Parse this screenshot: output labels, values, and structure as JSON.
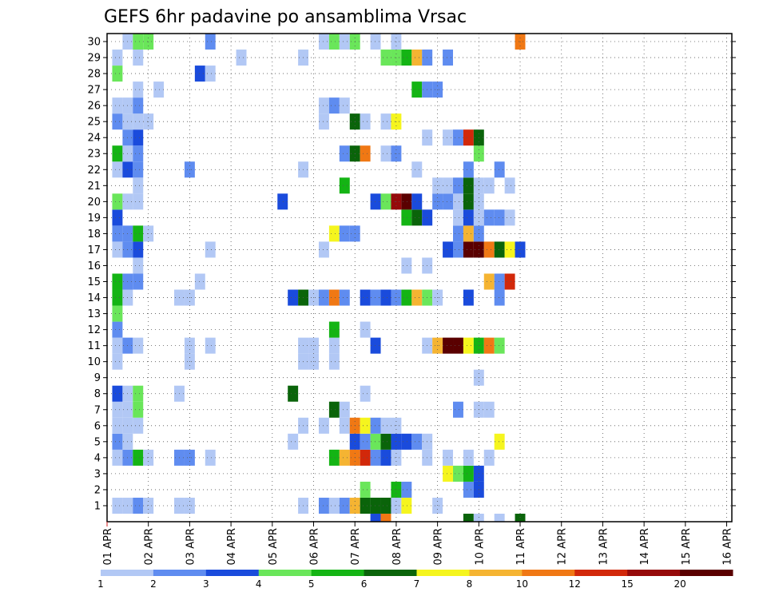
{
  "chart_data": {
    "type": "heatmap",
    "title": "GEFS 6hr padavine po ansamblima Vrsac",
    "xlabel": "",
    "ylabel": "",
    "x_tick_labels": [
      "01 APR",
      "02 APR",
      "03 APR",
      "04 APR",
      "05 APR",
      "06 APR",
      "07 APR",
      "08 APR",
      "09 APR",
      "10 APR",
      "11 APR",
      "12 APR",
      "13 APR",
      "14 APR",
      "15 APR",
      "16 APR"
    ],
    "y_tick_labels": [
      "1",
      "2",
      "3",
      "4",
      "5",
      "6",
      "7",
      "8",
      "9",
      "10",
      "11",
      "12",
      "13",
      "14",
      "15",
      "16",
      "17",
      "18",
      "19",
      "20",
      "21",
      "22",
      "23",
      "24",
      "25",
      "26",
      "27",
      "28",
      "29",
      "30"
    ],
    "grid": true,
    "legend_position": "bottom",
    "legend": {
      "labels": [
        "1",
        "2",
        "3",
        "4",
        "5",
        "6",
        "7",
        "8",
        "10",
        "12",
        "15",
        "20"
      ],
      "colors": [
        "#b2c8f5",
        "#5f8cf0",
        "#1a4bdc",
        "#6ae65a",
        "#14b414",
        "#0a640a",
        "#f5f51e",
        "#f5b432",
        "#f07814",
        "#d2280a",
        "#960a0a",
        "#5a0000"
      ]
    },
    "cells": [
      [
        1,
        1,
        0
      ],
      [
        2,
        1,
        0
      ],
      [
        3,
        1,
        1
      ],
      [
        4,
        1,
        0
      ],
      [
        7,
        1,
        0
      ],
      [
        8,
        1,
        0
      ],
      [
        19,
        1,
        0
      ],
      [
        21,
        1,
        1
      ],
      [
        22,
        1,
        0
      ],
      [
        23,
        1,
        1
      ],
      [
        24,
        1,
        7
      ],
      [
        25,
        1,
        5
      ],
      [
        26,
        1,
        5
      ],
      [
        27,
        1,
        5
      ],
      [
        28,
        1,
        0
      ],
      [
        29,
        1,
        6
      ],
      [
        32,
        1,
        0
      ],
      [
        25,
        2,
        3
      ],
      [
        28,
        2,
        4
      ],
      [
        29,
        2,
        1
      ],
      [
        35,
        2,
        1
      ],
      [
        36,
        2,
        2
      ],
      [
        33,
        3,
        6
      ],
      [
        34,
        3,
        3
      ],
      [
        35,
        3,
        4
      ],
      [
        36,
        3,
        2
      ],
      [
        1,
        4,
        0
      ],
      [
        2,
        4,
        1
      ],
      [
        3,
        4,
        4
      ],
      [
        4,
        4,
        0
      ],
      [
        7,
        4,
        1
      ],
      [
        8,
        4,
        1
      ],
      [
        10,
        4,
        0
      ],
      [
        22,
        4,
        4
      ],
      [
        23,
        4,
        7
      ],
      [
        24,
        4,
        8
      ],
      [
        25,
        4,
        9
      ],
      [
        26,
        4,
        1
      ],
      [
        27,
        4,
        2
      ],
      [
        28,
        4,
        0
      ],
      [
        31,
        4,
        0
      ],
      [
        33,
        4,
        0
      ],
      [
        35,
        4,
        0
      ],
      [
        37,
        4,
        0
      ],
      [
        1,
        5,
        1
      ],
      [
        2,
        5,
        0
      ],
      [
        18,
        5,
        0
      ],
      [
        24,
        5,
        2
      ],
      [
        25,
        5,
        1
      ],
      [
        26,
        5,
        3
      ],
      [
        27,
        5,
        5
      ],
      [
        28,
        5,
        2
      ],
      [
        29,
        5,
        2
      ],
      [
        30,
        5,
        1
      ],
      [
        31,
        5,
        0
      ],
      [
        38,
        5,
        6
      ],
      [
        1,
        6,
        0
      ],
      [
        2,
        6,
        0
      ],
      [
        3,
        6,
        0
      ],
      [
        19,
        6,
        0
      ],
      [
        21,
        6,
        0
      ],
      [
        23,
        6,
        0
      ],
      [
        24,
        6,
        8
      ],
      [
        25,
        6,
        6
      ],
      [
        26,
        6,
        1
      ],
      [
        27,
        6,
        0
      ],
      [
        28,
        6,
        0
      ],
      [
        1,
        7,
        0
      ],
      [
        2,
        7,
        0
      ],
      [
        3,
        7,
        3
      ],
      [
        22,
        7,
        5
      ],
      [
        23,
        7,
        0
      ],
      [
        34,
        7,
        1
      ],
      [
        36,
        7,
        0
      ],
      [
        37,
        7,
        0
      ],
      [
        1,
        8,
        2
      ],
      [
        2,
        8,
        0
      ],
      [
        3,
        8,
        3
      ],
      [
        7,
        8,
        0
      ],
      [
        18,
        8,
        5
      ],
      [
        25,
        8,
        0
      ],
      [
        36,
        9,
        0
      ],
      [
        1,
        10,
        0
      ],
      [
        8,
        10,
        0
      ],
      [
        19,
        10,
        0
      ],
      [
        20,
        10,
        0
      ],
      [
        22,
        10,
        0
      ],
      [
        1,
        11,
        0
      ],
      [
        2,
        11,
        1
      ],
      [
        3,
        11,
        0
      ],
      [
        8,
        11,
        0
      ],
      [
        10,
        11,
        0
      ],
      [
        19,
        11,
        0
      ],
      [
        20,
        11,
        0
      ],
      [
        22,
        11,
        0
      ],
      [
        26,
        11,
        2
      ],
      [
        31,
        11,
        0
      ],
      [
        32,
        11,
        7
      ],
      [
        33,
        11,
        11
      ],
      [
        34,
        11,
        11
      ],
      [
        35,
        11,
        6
      ],
      [
        36,
        11,
        4
      ],
      [
        37,
        11,
        8
      ],
      [
        38,
        11,
        3
      ],
      [
        1,
        12,
        1
      ],
      [
        22,
        12,
        4
      ],
      [
        25,
        12,
        0
      ],
      [
        1,
        13,
        3
      ],
      [
        1,
        14,
        4
      ],
      [
        2,
        14,
        0
      ],
      [
        7,
        14,
        0
      ],
      [
        8,
        14,
        0
      ],
      [
        18,
        14,
        2
      ],
      [
        19,
        14,
        5
      ],
      [
        20,
        14,
        0
      ],
      [
        21,
        14,
        1
      ],
      [
        22,
        14,
        8
      ],
      [
        23,
        14,
        1
      ],
      [
        25,
        14,
        2
      ],
      [
        26,
        14,
        1
      ],
      [
        27,
        14,
        2
      ],
      [
        28,
        14,
        1
      ],
      [
        29,
        14,
        4
      ],
      [
        30,
        14,
        7
      ],
      [
        31,
        14,
        3
      ],
      [
        32,
        14,
        0
      ],
      [
        35,
        14,
        2
      ],
      [
        38,
        14,
        1
      ],
      [
        1,
        15,
        4
      ],
      [
        2,
        15,
        1
      ],
      [
        3,
        15,
        1
      ],
      [
        9,
        15,
        0
      ],
      [
        37,
        15,
        7
      ],
      [
        38,
        15,
        1
      ],
      [
        39,
        15,
        9
      ],
      [
        3,
        16,
        0
      ],
      [
        29,
        16,
        0
      ],
      [
        31,
        16,
        0
      ],
      [
        1,
        17,
        0
      ],
      [
        2,
        17,
        1
      ],
      [
        3,
        17,
        2
      ],
      [
        10,
        17,
        0
      ],
      [
        21,
        17,
        0
      ],
      [
        33,
        17,
        2
      ],
      [
        34,
        17,
        1
      ],
      [
        35,
        17,
        11
      ],
      [
        36,
        17,
        11
      ],
      [
        37,
        17,
        8
      ],
      [
        38,
        17,
        5
      ],
      [
        39,
        17,
        6
      ],
      [
        40,
        17,
        2
      ],
      [
        1,
        18,
        1
      ],
      [
        2,
        18,
        1
      ],
      [
        3,
        18,
        4
      ],
      [
        4,
        18,
        0
      ],
      [
        22,
        18,
        6
      ],
      [
        23,
        18,
        1
      ],
      [
        24,
        18,
        1
      ],
      [
        34,
        18,
        1
      ],
      [
        35,
        18,
        7
      ],
      [
        36,
        18,
        1
      ],
      [
        1,
        19,
        2
      ],
      [
        29,
        19,
        4
      ],
      [
        30,
        19,
        5
      ],
      [
        31,
        19,
        2
      ],
      [
        34,
        19,
        0
      ],
      [
        35,
        19,
        2
      ],
      [
        36,
        19,
        0
      ],
      [
        37,
        19,
        1
      ],
      [
        38,
        19,
        1
      ],
      [
        39,
        19,
        0
      ],
      [
        1,
        20,
        3
      ],
      [
        2,
        20,
        0
      ],
      [
        3,
        20,
        0
      ],
      [
        17,
        20,
        2
      ],
      [
        26,
        20,
        2
      ],
      [
        27,
        20,
        3
      ],
      [
        28,
        20,
        10
      ],
      [
        29,
        20,
        11
      ],
      [
        30,
        20,
        2
      ],
      [
        32,
        20,
        1
      ],
      [
        33,
        20,
        1
      ],
      [
        34,
        20,
        0
      ],
      [
        35,
        20,
        5
      ],
      [
        36,
        20,
        0
      ],
      [
        3,
        21,
        0
      ],
      [
        23,
        21,
        4
      ],
      [
        32,
        21,
        0
      ],
      [
        33,
        21,
        0
      ],
      [
        34,
        21,
        1
      ],
      [
        35,
        21,
        5
      ],
      [
        36,
        21,
        0
      ],
      [
        37,
        21,
        0
      ],
      [
        39,
        21,
        0
      ],
      [
        1,
        22,
        0
      ],
      [
        2,
        22,
        2
      ],
      [
        3,
        22,
        1
      ],
      [
        8,
        22,
        1
      ],
      [
        19,
        22,
        0
      ],
      [
        30,
        22,
        0
      ],
      [
        35,
        22,
        1
      ],
      [
        38,
        22,
        1
      ],
      [
        1,
        23,
        4
      ],
      [
        2,
        23,
        0
      ],
      [
        3,
        23,
        1
      ],
      [
        23,
        23,
        1
      ],
      [
        24,
        23,
        5
      ],
      [
        25,
        23,
        8
      ],
      [
        27,
        23,
        0
      ],
      [
        28,
        23,
        1
      ],
      [
        36,
        23,
        3
      ],
      [
        2,
        24,
        1
      ],
      [
        3,
        24,
        2
      ],
      [
        31,
        24,
        0
      ],
      [
        33,
        24,
        0
      ],
      [
        34,
        24,
        1
      ],
      [
        35,
        24,
        9
      ],
      [
        36,
        24,
        5
      ],
      [
        1,
        25,
        1
      ],
      [
        2,
        25,
        0
      ],
      [
        3,
        25,
        0
      ],
      [
        4,
        25,
        0
      ],
      [
        21,
        25,
        0
      ],
      [
        24,
        25,
        5
      ],
      [
        25,
        25,
        0
      ],
      [
        27,
        25,
        0
      ],
      [
        28,
        25,
        6
      ],
      [
        1,
        26,
        0
      ],
      [
        2,
        26,
        0
      ],
      [
        3,
        26,
        1
      ],
      [
        21,
        26,
        0
      ],
      [
        22,
        26,
        1
      ],
      [
        23,
        26,
        0
      ],
      [
        3,
        27,
        0
      ],
      [
        5,
        27,
        0
      ],
      [
        30,
        27,
        4
      ],
      [
        31,
        27,
        1
      ],
      [
        32,
        27,
        1
      ],
      [
        1,
        28,
        3
      ],
      [
        9,
        28,
        2
      ],
      [
        10,
        28,
        0
      ],
      [
        1,
        29,
        0
      ],
      [
        3,
        29,
        0
      ],
      [
        13,
        29,
        0
      ],
      [
        19,
        29,
        0
      ],
      [
        27,
        29,
        3
      ],
      [
        28,
        29,
        3
      ],
      [
        29,
        29,
        4
      ],
      [
        30,
        29,
        7
      ],
      [
        31,
        29,
        1
      ],
      [
        33,
        29,
        1
      ],
      [
        2,
        30,
        0
      ],
      [
        3,
        30,
        3
      ],
      [
        4,
        30,
        3
      ],
      [
        10,
        30,
        1
      ],
      [
        21,
        30,
        0
      ],
      [
        22,
        30,
        3
      ],
      [
        23,
        30,
        0
      ],
      [
        24,
        30,
        3
      ],
      [
        26,
        30,
        0
      ],
      [
        28,
        30,
        0
      ],
      [
        40,
        30,
        8
      ],
      [
        26,
        0,
        2
      ],
      [
        27,
        0,
        8
      ],
      [
        38,
        0,
        0
      ],
      [
        40,
        0,
        5
      ],
      [
        35,
        0,
        5
      ],
      [
        36,
        0,
        0
      ]
    ]
  }
}
